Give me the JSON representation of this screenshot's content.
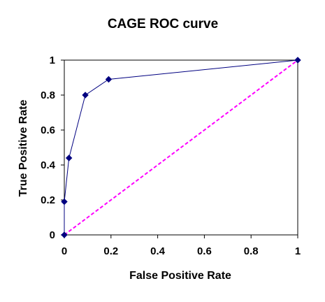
{
  "chart_data": {
    "type": "line",
    "title": "CAGE ROC curve",
    "xlabel": "False Positive Rate",
    "ylabel": "True Positive Rate",
    "xlim": [
      0,
      1
    ],
    "ylim": [
      0,
      1
    ],
    "x_ticks": [
      "0",
      "0.2",
      "0.4",
      "0.6",
      "0.8",
      "1"
    ],
    "y_ticks": [
      "0",
      "0.2",
      "0.4",
      "0.6",
      "0.8",
      "1"
    ],
    "grid": false,
    "legend": "none",
    "series": [
      {
        "x": [
          0,
          0,
          0.02,
          0.09,
          0.19,
          1
        ],
        "y": [
          0,
          0.19,
          0.44,
          0.8,
          0.89,
          1
        ],
        "color": "#000080",
        "marker": "diamond"
      },
      {
        "x": [
          0,
          1
        ],
        "y": [
          0,
          1
        ],
        "color": "#ff00ff",
        "line_style": "dashed"
      }
    ]
  }
}
